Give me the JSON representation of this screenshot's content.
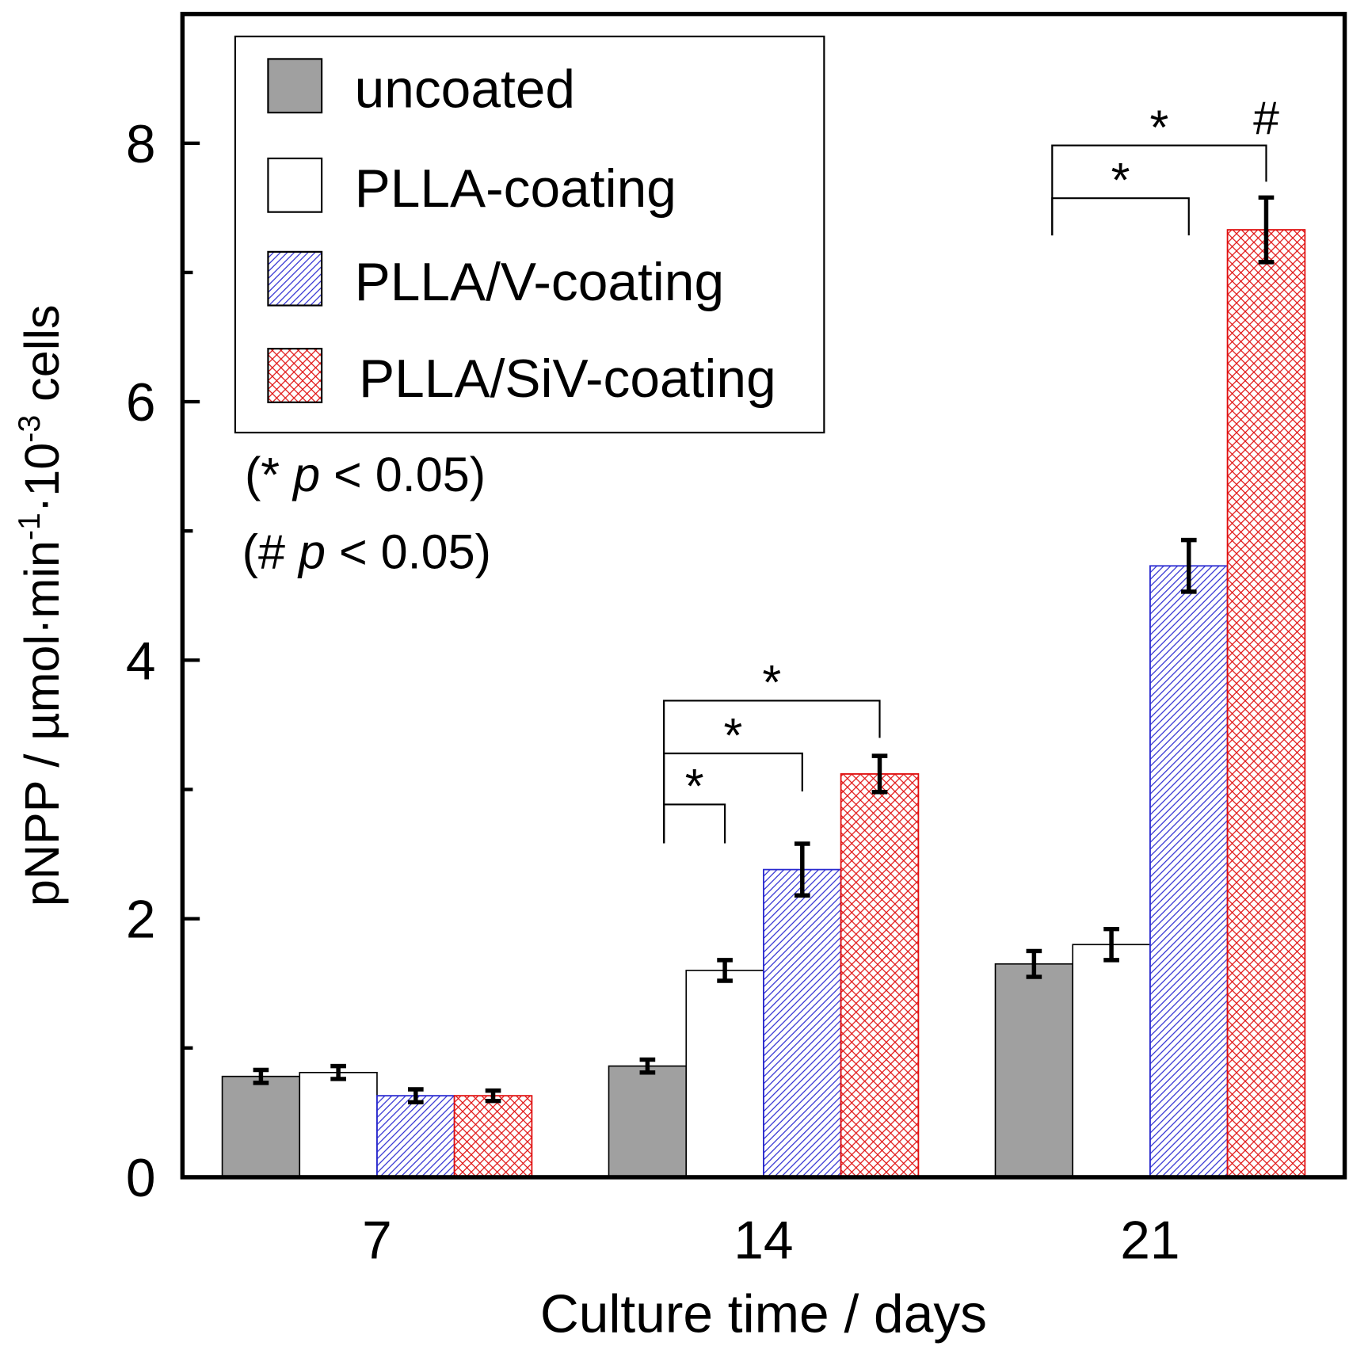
{
  "chart_data": {
    "type": "bar",
    "title": "",
    "xlabel": "Culture time / days",
    "ylabel": "pNPP / µmol·min-1·10-3 cells",
    "ylabel_parts": [
      "pNPP / µmol·min",
      "-1",
      "·10",
      "-3",
      " cells"
    ],
    "categories": [
      "7",
      "14",
      "21"
    ],
    "ylim": [
      0,
      9
    ],
    "yticks": [
      "0",
      "2",
      "4",
      "6",
      "8"
    ],
    "legend_position": "top-left",
    "series": [
      {
        "name": "uncoated",
        "fill": "#a0a0a0",
        "pattern": "solid",
        "values": [
          0.78,
          0.86,
          1.65
        ],
        "errors": [
          0.05,
          0.05,
          0.1
        ]
      },
      {
        "name": "PLLA-coating",
        "fill": "#ffffff",
        "pattern": "solid",
        "values": [
          0.81,
          1.6,
          1.8
        ],
        "errors": [
          0.05,
          0.08,
          0.12
        ]
      },
      {
        "name": "PLLA/V-coating",
        "fill": "#2a2ad0",
        "pattern": "diagonal",
        "values": [
          0.63,
          2.38,
          4.73
        ],
        "errors": [
          0.05,
          0.2,
          0.2
        ]
      },
      {
        "name": "PLLA/SiV-coating",
        "fill": "#e01010",
        "pattern": "crosshatch",
        "values": [
          0.63,
          3.12,
          7.33
        ],
        "errors": [
          0.04,
          0.14,
          0.25
        ]
      }
    ],
    "significance": [
      {
        "category": 1,
        "from": 0,
        "to": 1,
        "label": "*"
      },
      {
        "category": 1,
        "from": 0,
        "to": 2,
        "label": "*"
      },
      {
        "category": 1,
        "from": 0,
        "to": 3,
        "label": "*"
      },
      {
        "category": 2,
        "from": 0,
        "to": 2,
        "label": "*"
      },
      {
        "category": 2,
        "from": 0,
        "to": 3,
        "label": "*"
      }
    ],
    "hash_mark": {
      "category": 2,
      "series": 3,
      "label": "#"
    },
    "annotations": [
      "(* p < 0.05)",
      "(# p < 0.05)"
    ]
  }
}
